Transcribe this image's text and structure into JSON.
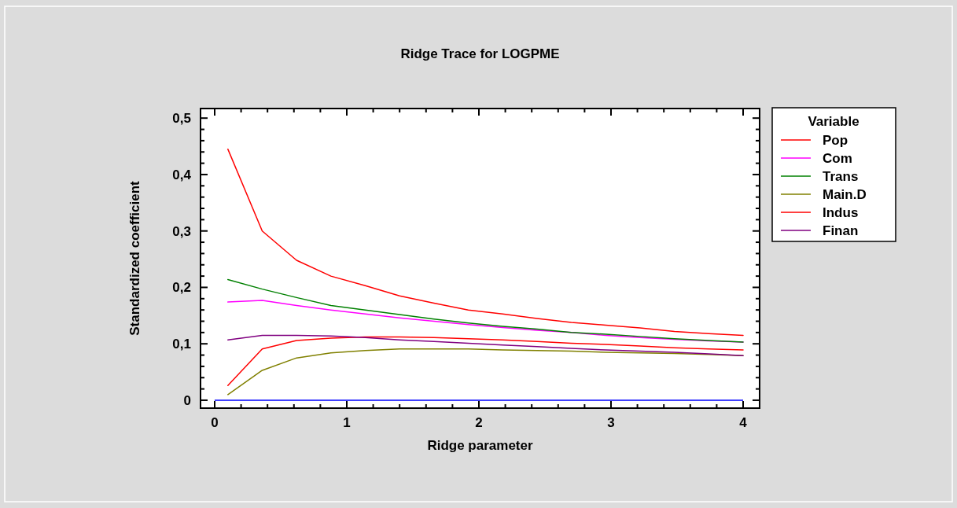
{
  "chart_data": {
    "type": "line",
    "title": "Ridge Trace for LOGPME",
    "xlabel": "Ridge parameter",
    "ylabel": "Standardized coefficient",
    "legend_title": "Variable",
    "legend": "right",
    "grid": false,
    "x": [
      0.1,
      0.36,
      0.62,
      0.88,
      1.14,
      1.4,
      1.66,
      1.92,
      2.18,
      2.44,
      2.7,
      2.96,
      3.22,
      3.48,
      3.74,
      4.0
    ],
    "xlim": [
      -0.107,
      4.125
    ],
    "xticks": [
      0,
      {
        "value": 0.2,
        "label": null
      },
      {
        "value": 0.4,
        "label": null
      },
      {
        "value": 0.6,
        "label": null
      },
      {
        "value": 0.8,
        "label": null
      },
      {
        "value": 1,
        "label": "1"
      },
      {
        "value": 1.2,
        "label": null
      },
      {
        "value": 1.4,
        "label": null
      },
      {
        "value": 1.6,
        "label": null
      },
      {
        "value": 1.8,
        "label": null
      },
      2,
      {
        "value": 2.2,
        "label": null
      },
      {
        "value": 2.4,
        "label": null
      },
      {
        "value": 2.6,
        "label": null
      },
      {
        "value": 2.8,
        "label": null
      },
      3,
      {
        "value": 3.2,
        "label": null
      },
      {
        "value": 3.4,
        "label": null
      },
      {
        "value": 3.6,
        "label": null
      },
      {
        "value": 3.8,
        "label": null
      },
      4
    ],
    "ylim": [
      -0.014,
      0.517
    ],
    "yticks": [
      0,
      {
        "value": 0.02,
        "label": null
      },
      {
        "value": 0.04,
        "label": null
      },
      {
        "value": 0.06,
        "label": null
      },
      {
        "value": 0.08,
        "label": null
      },
      {
        "value": 0.1,
        "label": "0,1"
      },
      {
        "value": 0.12,
        "label": null
      },
      {
        "value": 0.14,
        "label": null
      },
      {
        "value": 0.16,
        "label": null
      },
      {
        "value": 0.18,
        "label": null
      },
      {
        "value": 0.2,
        "label": "0,2"
      },
      {
        "value": 0.22,
        "label": null
      },
      {
        "value": 0.24,
        "label": null
      },
      {
        "value": 0.26,
        "label": null
      },
      {
        "value": 0.28,
        "label": null
      },
      {
        "value": 0.3,
        "label": "0,3"
      },
      {
        "value": 0.32,
        "label": null
      },
      {
        "value": 0.34,
        "label": null
      },
      {
        "value": 0.36,
        "label": null
      },
      {
        "value": 0.38,
        "label": null
      },
      {
        "value": 0.4,
        "label": "0,4"
      },
      {
        "value": 0.42,
        "label": null
      },
      {
        "value": 0.44,
        "label": null
      },
      {
        "value": 0.46,
        "label": null
      },
      {
        "value": 0.48,
        "label": null
      },
      {
        "value": 0.5,
        "label": "0,5"
      }
    ],
    "ref_lines": [
      {
        "axis": "y",
        "value": 0,
        "color": "#0000ff"
      }
    ],
    "series": [
      {
        "name": "Pop",
        "color": "#ff0000",
        "values": [
          0.445,
          0.3,
          0.248,
          0.22,
          0.203,
          0.185,
          0.172,
          0.16,
          0.153,
          0.145,
          0.138,
          0.133,
          0.128,
          0.122,
          0.118,
          0.115
        ]
      },
      {
        "name": "Com",
        "color": "#ff00ff",
        "values": [
          0.174,
          0.177,
          0.168,
          0.16,
          0.153,
          0.146,
          0.14,
          0.134,
          0.129,
          0.124,
          0.12,
          0.115,
          0.111,
          0.108,
          0.105,
          0.103
        ]
      },
      {
        "name": "Trans",
        "color": "#008000",
        "values": [
          0.214,
          0.197,
          0.182,
          0.168,
          0.16,
          0.152,
          0.144,
          0.137,
          0.131,
          0.126,
          0.12,
          0.117,
          0.113,
          0.109,
          0.106,
          0.103
        ]
      },
      {
        "name": "Main.D",
        "color": "#808000",
        "values": [
          0.01,
          0.053,
          0.075,
          0.084,
          0.088,
          0.091,
          0.091,
          0.091,
          0.089,
          0.088,
          0.087,
          0.085,
          0.084,
          0.083,
          0.081,
          0.079
        ]
      },
      {
        "name": "Indus",
        "color": "#ff0000",
        "values": [
          0.026,
          0.091,
          0.106,
          0.11,
          0.112,
          0.112,
          0.111,
          0.109,
          0.107,
          0.104,
          0.101,
          0.099,
          0.096,
          0.093,
          0.091,
          0.089
        ]
      },
      {
        "name": "Finan",
        "color": "#800080",
        "values": [
          0.107,
          0.115,
          0.115,
          0.114,
          0.111,
          0.107,
          0.104,
          0.101,
          0.098,
          0.095,
          0.092,
          0.089,
          0.087,
          0.085,
          0.082,
          0.079
        ]
      }
    ]
  }
}
